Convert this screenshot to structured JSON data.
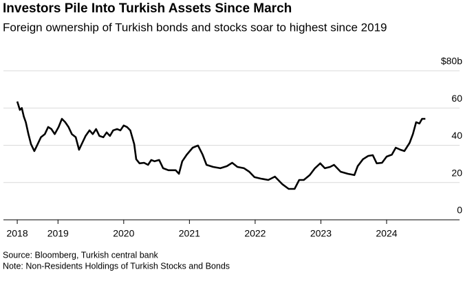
{
  "chart_data": {
    "type": "line",
    "title": "Investors Pile Into Turkish Assets Since March",
    "subtitle": "Foreign ownership of Turkish bonds and stocks soar to highest since 2019",
    "source": "Source: Bloomberg, Turkish central bank",
    "note": "Note: Non-Residents Holdings of Turkish Stocks and Bonds",
    "x": [
      2018.38,
      2018.42,
      2018.45,
      2018.48,
      2018.51,
      2018.55,
      2018.59,
      2018.64,
      2018.69,
      2018.74,
      2018.8,
      2018.85,
      2018.9,
      2018.95,
      2019.01,
      2019.06,
      2019.11,
      2019.16,
      2019.21,
      2019.27,
      2019.32,
      2019.37,
      2019.42,
      2019.48,
      2019.53,
      2019.58,
      2019.63,
      2019.69,
      2019.74,
      2019.79,
      2019.84,
      2019.9,
      2019.95,
      2020.0,
      2020.05,
      2020.1,
      2020.16,
      2020.19,
      2020.24,
      2020.31,
      2020.37,
      2020.42,
      2020.47,
      2020.54,
      2020.6,
      2020.68,
      2020.79,
      2020.84,
      2020.89,
      2020.96,
      2021.05,
      2021.13,
      2021.2,
      2021.26,
      2021.36,
      2021.47,
      2021.57,
      2021.65,
      2021.73,
      2021.83,
      2021.91,
      2021.99,
      2022.09,
      2022.2,
      2022.3,
      2022.41,
      2022.51,
      2022.6,
      2022.67,
      2022.74,
      2022.83,
      2022.91,
      2022.99,
      2023.06,
      2023.14,
      2023.2,
      2023.3,
      2023.41,
      2023.51,
      2023.56,
      2023.64,
      2023.72,
      2023.79,
      2023.85,
      2023.93,
      2024.0,
      2024.08,
      2024.14,
      2024.21,
      2024.27,
      2024.35,
      2024.4,
      2024.45,
      2024.5,
      2024.54,
      2024.59
    ],
    "series": [
      {
        "color": "#000000",
        "values": [
          63.5,
          59,
          60,
          55.4,
          52.4,
          46,
          40.6,
          36.9,
          40.6,
          44.3,
          46,
          49.8,
          48.7,
          46,
          49.8,
          54.2,
          52.4,
          49.8,
          46,
          44.3,
          37.6,
          41.3,
          45,
          48,
          46,
          48.7,
          45,
          44.3,
          46.9,
          45,
          48,
          48.7,
          48,
          50.6,
          49.8,
          48,
          40.6,
          32.5,
          30.3,
          30.6,
          29.5,
          32.1,
          31.4,
          32.1,
          27.7,
          26.6,
          26.6,
          24.7,
          31.4,
          35,
          38.7,
          39.9,
          35,
          29.5,
          28.4,
          27.7,
          28.8,
          30.6,
          28.4,
          27.7,
          25.8,
          22.9,
          22.1,
          21.4,
          23.2,
          19.2,
          16.6,
          16.6,
          21.4,
          21.4,
          24,
          27.7,
          30.3,
          27.7,
          28.4,
          29.5,
          25.8,
          24.7,
          24,
          28.8,
          32.5,
          34.3,
          34.7,
          30.3,
          30.6,
          33.9,
          35,
          38.7,
          37.6,
          36.9,
          41.3,
          46,
          52.4,
          51.7,
          54.2,
          54.2
        ]
      }
    ],
    "xlim": [
      2018.17,
      2025.11
    ],
    "xticks": [
      {
        "value": 2018.38,
        "label": "2018"
      },
      2019,
      2020,
      2021,
      2022,
      2023,
      2024
    ],
    "ylim": [
      0,
      80
    ],
    "yticks": [
      0,
      20,
      40,
      60,
      {
        "value": 80,
        "label": "$80b"
      }
    ],
    "grid": true
  }
}
